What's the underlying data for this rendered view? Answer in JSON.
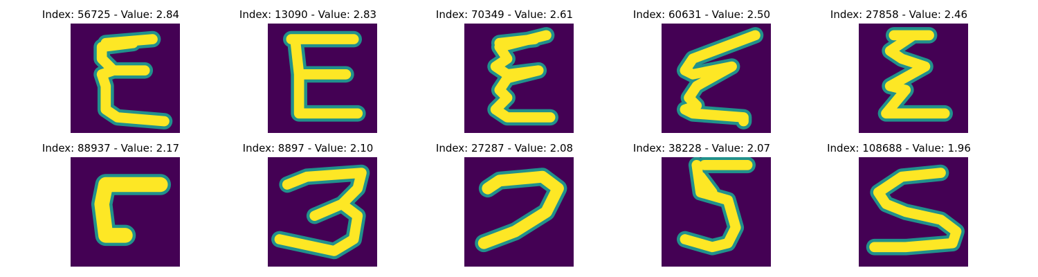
{
  "colors": {
    "background": "#440154",
    "stroke_core": "#fde725",
    "stroke_edge": "#21918c"
  },
  "panels": [
    {
      "title": "Index: 56725 - Value: 2.84"
    },
    {
      "title": "Index: 13090 - Value: 2.83"
    },
    {
      "title": "Index: 70349 - Value: 2.61"
    },
    {
      "title": "Index: 60631 - Value: 2.50"
    },
    {
      "title": "Index: 27858 - Value: 2.46"
    },
    {
      "title": "Index: 88937 - Value: 2.17"
    },
    {
      "title": "Index: 8897 - Value: 2.10"
    },
    {
      "title": "Index: 27287 - Value: 2.08"
    },
    {
      "title": "Index: 38228 - Value: 2.07"
    },
    {
      "title": "Index: 108688 - Value: 1.96"
    }
  ]
}
